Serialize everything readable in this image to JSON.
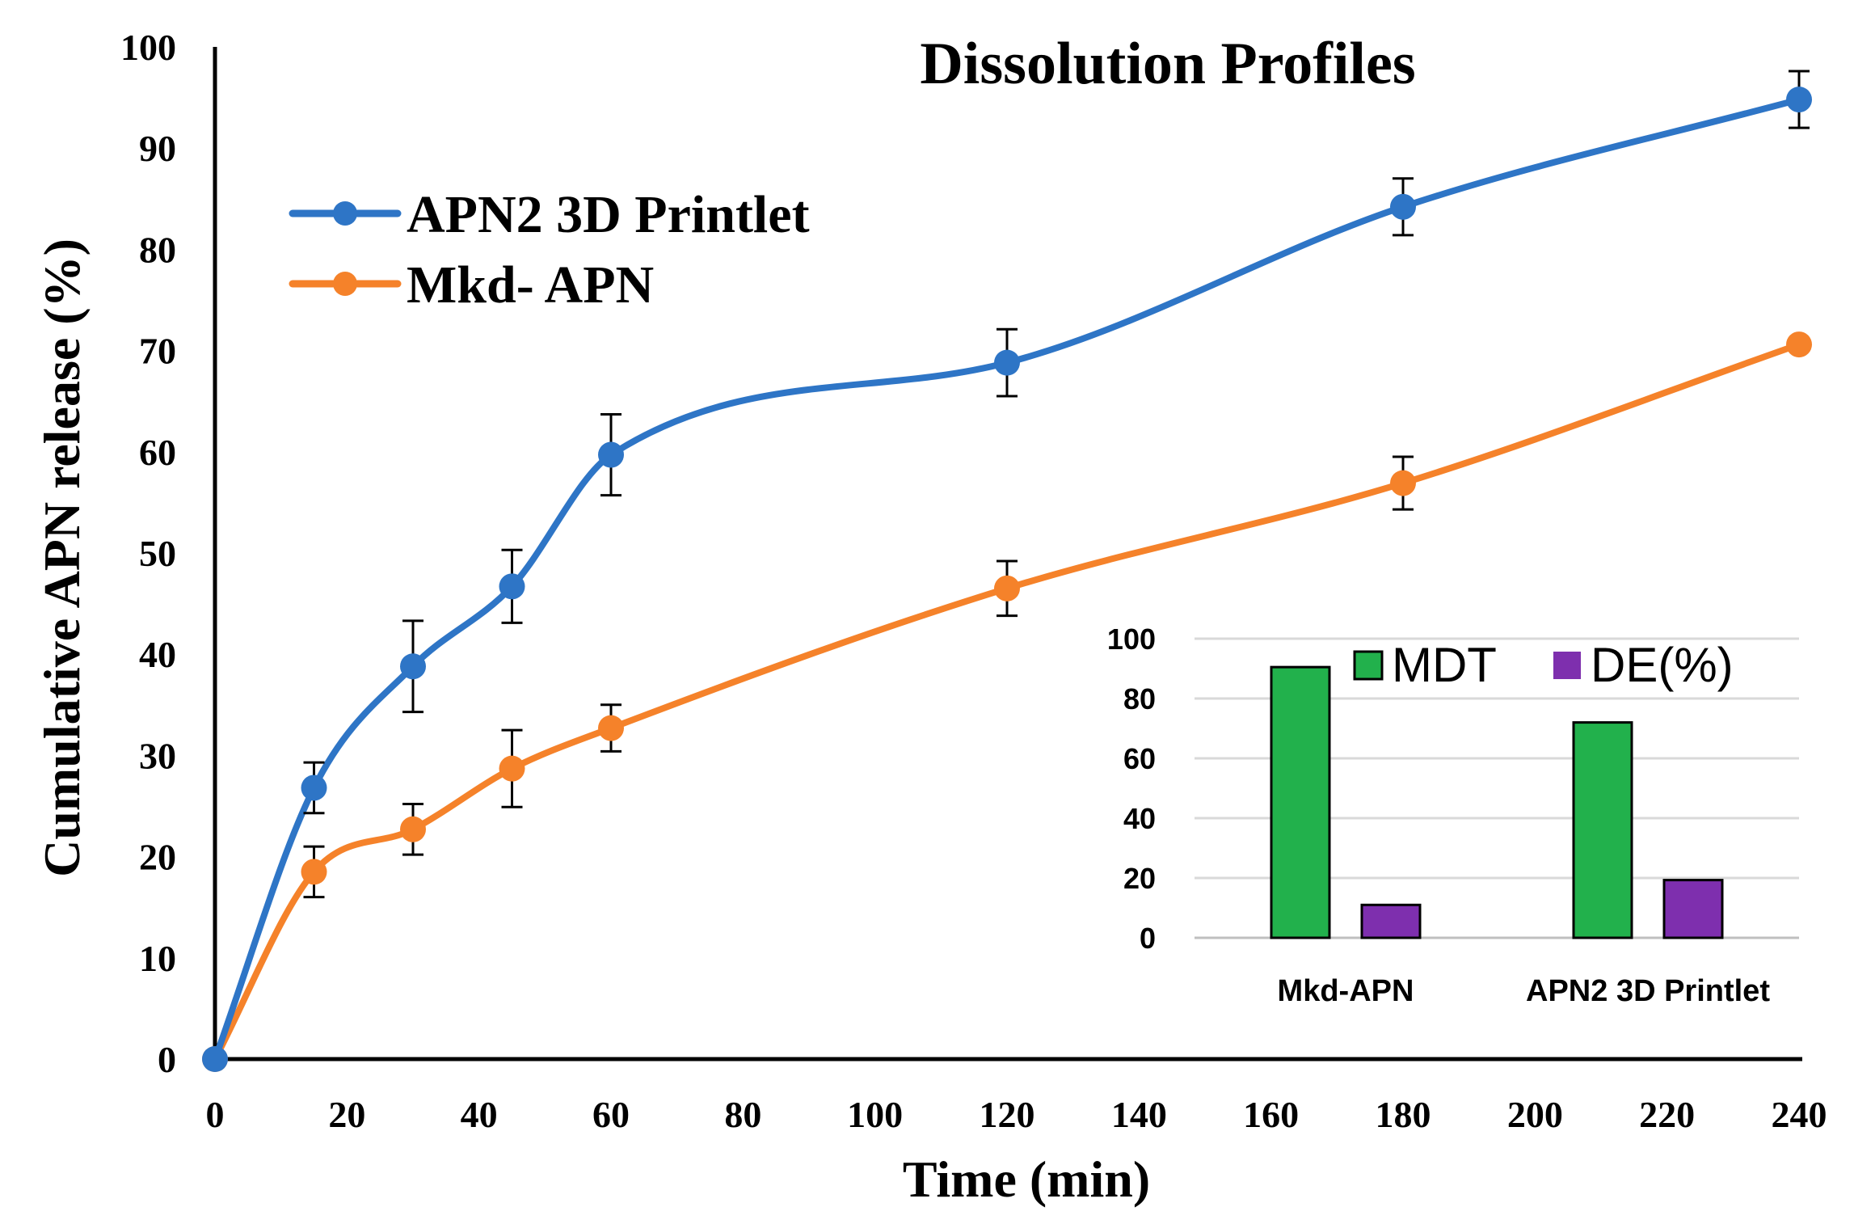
{
  "chart_data": [
    {
      "type": "line",
      "title": "Dissolution Profiles",
      "xlabel": "Time (min)",
      "ylabel": "Cumulative APN release (%)",
      "xlim": [
        0,
        240
      ],
      "ylim": [
        0,
        100
      ],
      "xticks": [
        0,
        20,
        40,
        60,
        80,
        100,
        120,
        140,
        160,
        180,
        200,
        220,
        240
      ],
      "yticks": [
        0,
        10,
        20,
        30,
        40,
        50,
        60,
        70,
        80,
        90,
        100
      ],
      "grid": false,
      "legend_position": "top-left",
      "series": [
        {
          "name": "APN2 3D Printlet",
          "color": "#2E75C6",
          "x": [
            0,
            15,
            30,
            45,
            60,
            120,
            180,
            240
          ],
          "y": [
            0,
            26.8,
            38.8,
            46.7,
            59.7,
            68.8,
            84.2,
            94.8
          ],
          "error": [
            0,
            2.5,
            4.5,
            3.6,
            4.0,
            3.3,
            2.8,
            2.8
          ]
        },
        {
          "name": "Mkd- APN",
          "color": "#F5822A",
          "x": [
            0,
            15,
            30,
            45,
            60,
            120,
            180,
            240
          ],
          "y": [
            0,
            18.5,
            22.7,
            28.7,
            32.7,
            46.5,
            56.9,
            70.6
          ],
          "error": [
            0,
            2.5,
            2.5,
            3.8,
            2.3,
            2.7,
            2.6,
            0
          ]
        }
      ]
    },
    {
      "type": "bar",
      "title": "",
      "categories": [
        "Mkd-APN",
        "APN2 3D Printlet"
      ],
      "ylim": [
        0,
        100
      ],
      "yticks": [
        0,
        20,
        40,
        60,
        80,
        100
      ],
      "grid": true,
      "legend_position": "top",
      "series": [
        {
          "name": "MDT",
          "color": "#22B14C",
          "values": [
            90.5,
            72
          ]
        },
        {
          "name": "DE(%)",
          "color": "#7E2FAE",
          "values": [
            11,
            19.3
          ]
        }
      ]
    }
  ]
}
